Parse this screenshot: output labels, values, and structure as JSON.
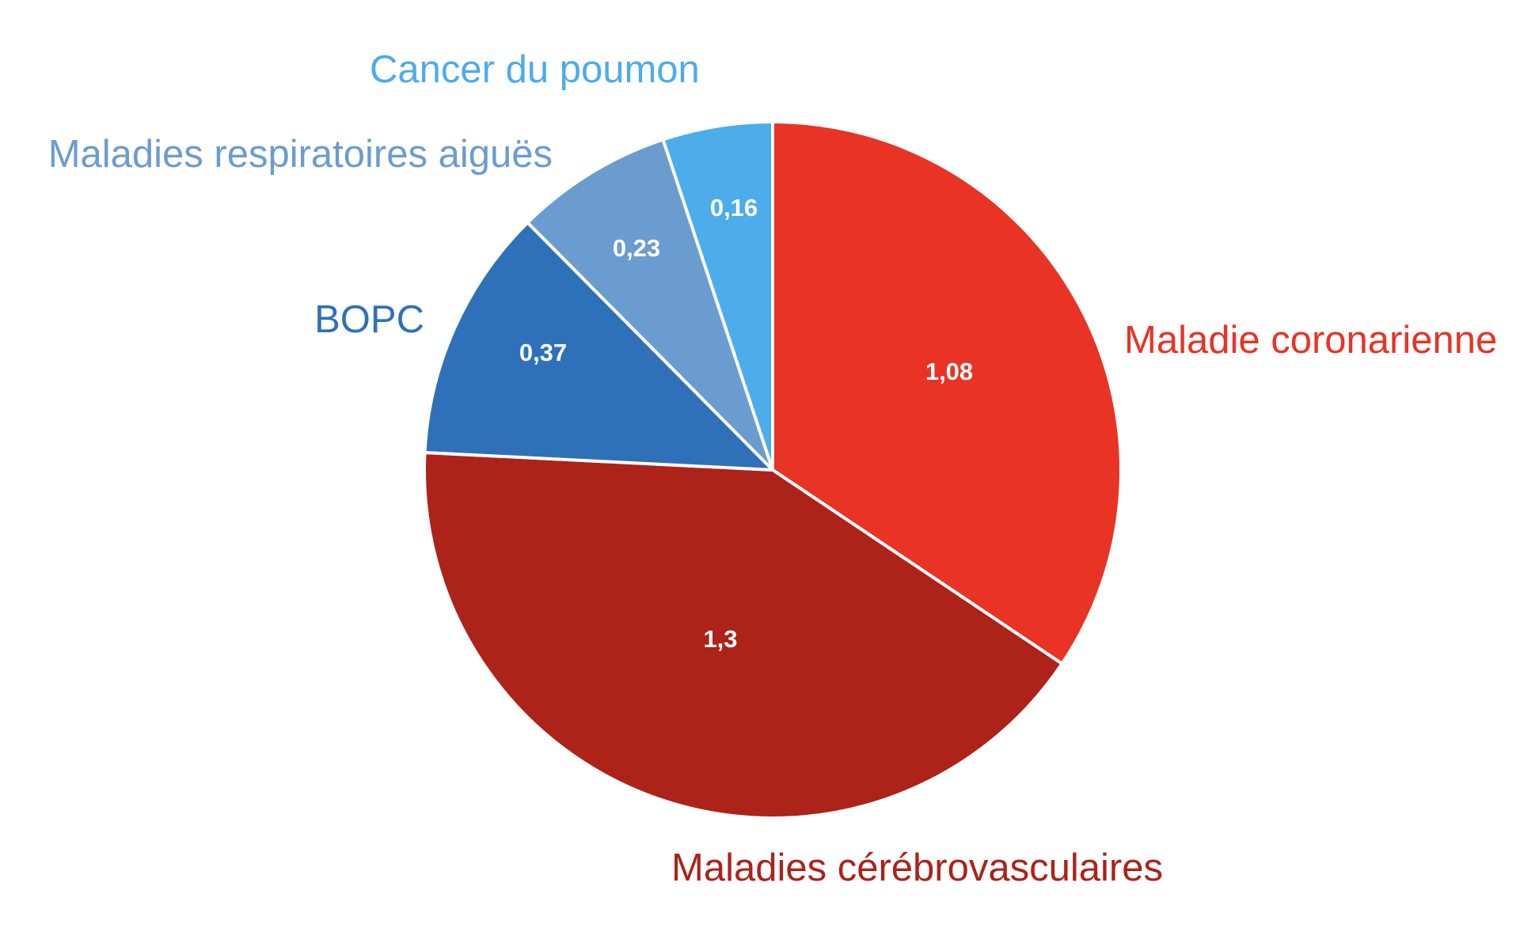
{
  "chart_data": {
    "type": "pie",
    "title": "",
    "start_angle_deg": 0,
    "direction": "clockwise",
    "slices": [
      {
        "label": "Maladie coronarienne",
        "value": 1.08,
        "value_label": "1,08",
        "color": "#E83325"
      },
      {
        "label": "Maladies cérébrovasculaires",
        "value": 1.3,
        "value_label": "1,3",
        "color": "#AD2219"
      },
      {
        "label": "BOPC",
        "value": 0.37,
        "value_label": "0,37",
        "color": "#2E71B8"
      },
      {
        "label": "Maladies respiratoires aiguës",
        "value": 0.23,
        "value_label": "0,23",
        "color": "#6B9CD0"
      },
      {
        "label": "Cancer du poumon",
        "value": 0.16,
        "value_label": "0,16",
        "color": "#4DACEA"
      }
    ]
  }
}
